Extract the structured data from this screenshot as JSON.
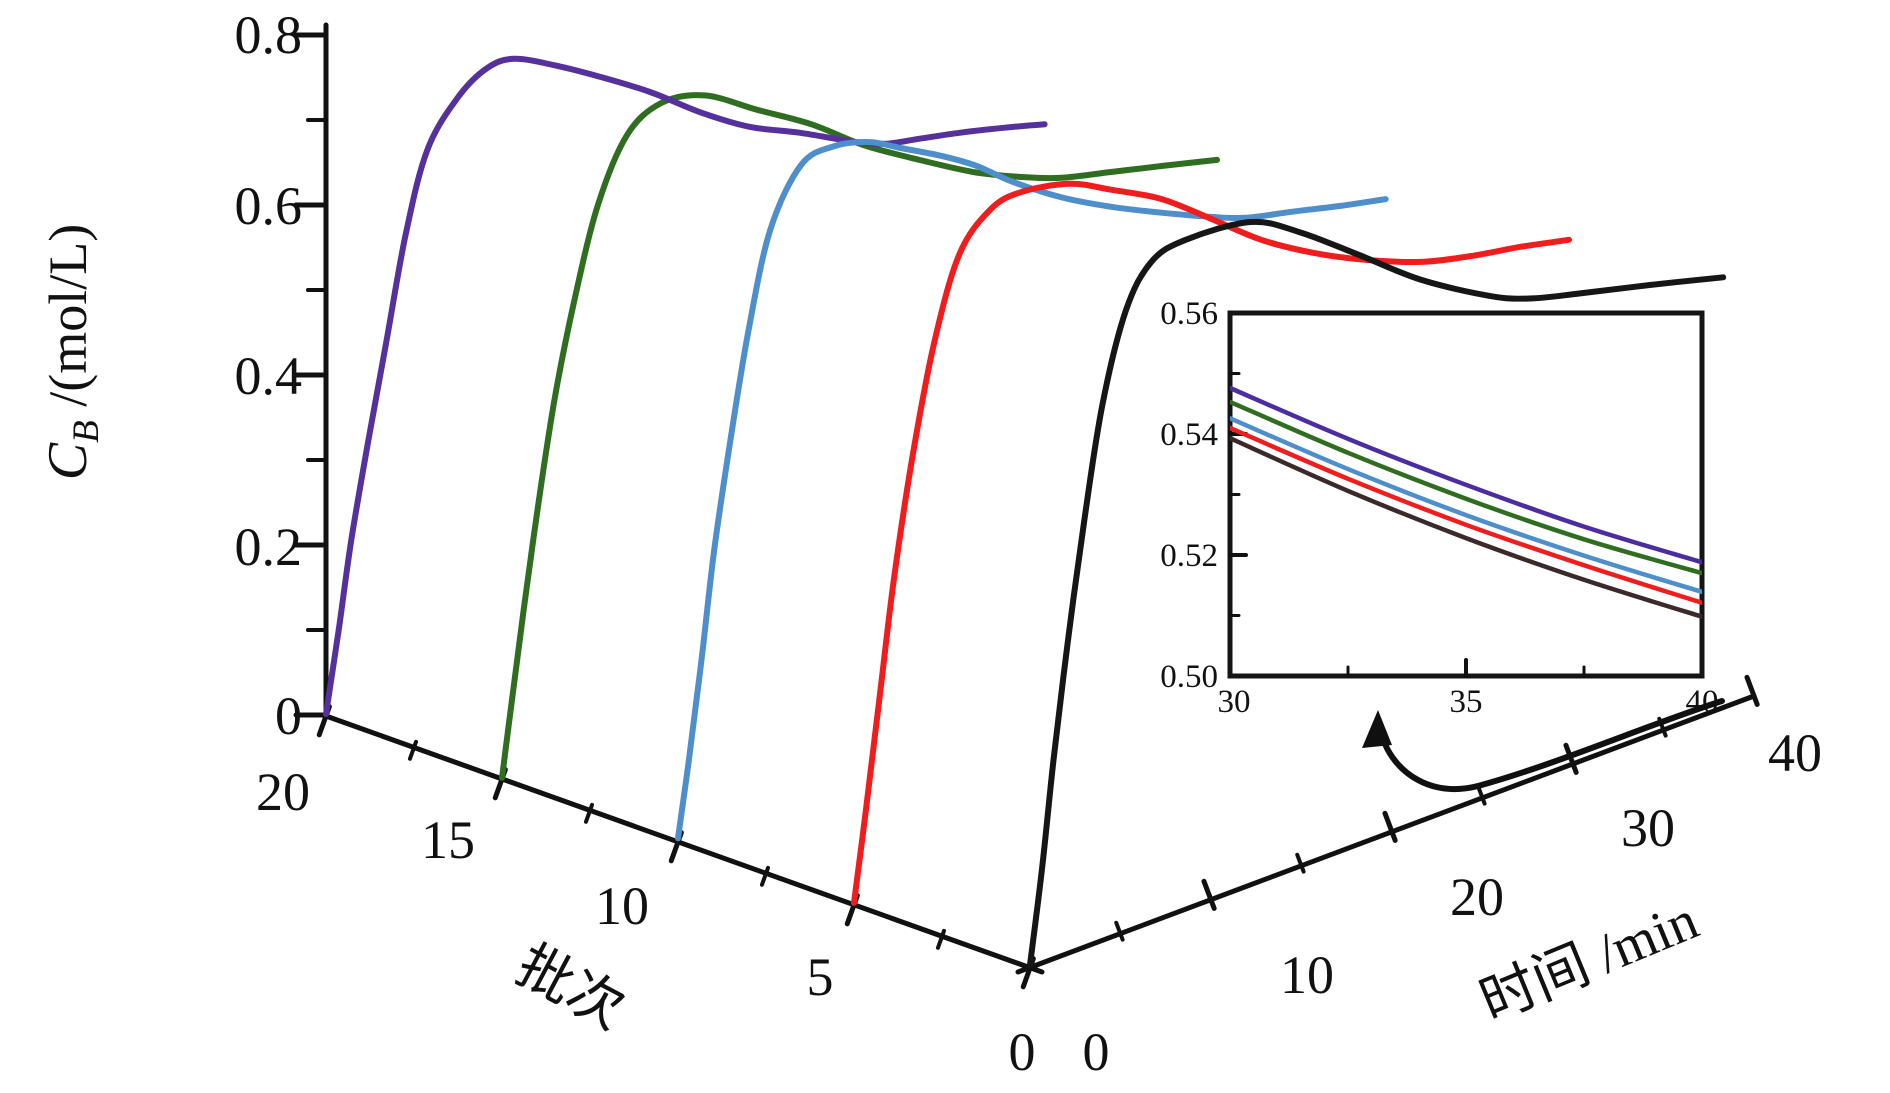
{
  "figure": {
    "background": "#ffffff",
    "description": "3D waterfall line plot of product concentration versus time for successive batches, with zoom inset"
  },
  "chart_data": {
    "type": "line",
    "projection": "3d-waterfall",
    "main": {
      "z_axis": {
        "label": "C_B /(mol/L)",
        "label_rich": {
          "symbol": "C",
          "subscript": "B",
          "rest": " /(mol/L)"
        },
        "min": 0,
        "max": 0.8,
        "major_ticks": [
          0,
          0.2,
          0.4,
          0.6,
          0.8
        ],
        "tick_labels": [
          "0",
          "0.2",
          "0.4",
          "0.6",
          "0.8"
        ],
        "minor_step": 0.1
      },
      "batch_axis": {
        "label": "批次",
        "min": 0,
        "max": 20,
        "major_ticks": [
          20,
          15,
          10,
          5,
          0
        ],
        "tick_labels": [
          "20",
          "15",
          "10",
          "5",
          "0"
        ],
        "minor_step": 2.5
      },
      "time_axis": {
        "label": "时间 /min",
        "min": 0,
        "max": 40,
        "major_ticks": [
          0,
          10,
          20,
          30,
          40
        ],
        "tick_labels": [
          "0",
          "10",
          "20",
          "30",
          "40"
        ],
        "minor_step": 5
      },
      "series": [
        {
          "name": "batch-20",
          "batch": 20,
          "color": "#56319b",
          "points": [
            [
              0,
              0.001
            ],
            [
              0.7,
              0.1
            ],
            [
              1.4,
              0.206
            ],
            [
              2.3,
              0.318
            ],
            [
              3.3,
              0.435
            ],
            [
              4.4,
              0.565
            ],
            [
              5.6,
              0.665
            ],
            [
              7.3,
              0.727
            ],
            [
              8.9,
              0.761
            ],
            [
              10.4,
              0.772
            ],
            [
              12.7,
              0.764
            ],
            [
              15.1,
              0.751
            ],
            [
              17.9,
              0.733
            ],
            [
              20.7,
              0.709
            ],
            [
              23.4,
              0.692
            ],
            [
              26.2,
              0.685
            ],
            [
              29.0,
              0.675
            ],
            [
              30.9,
              0.672
            ],
            [
              32.8,
              0.678
            ],
            [
              35.0,
              0.685
            ],
            [
              37.5,
              0.691
            ],
            [
              39.7,
              0.695
            ]
          ]
        },
        {
          "name": "batch-15",
          "batch": 15,
          "color": "#2f6e20",
          "points": [
            [
              0,
              -0.074
            ],
            [
              0.55,
              0.018
            ],
            [
              1.2,
              0.124
            ],
            [
              2.0,
              0.247
            ],
            [
              2.9,
              0.371
            ],
            [
              4.0,
              0.488
            ],
            [
              5.3,
              0.6
            ],
            [
              6.9,
              0.682
            ],
            [
              8.8,
              0.72
            ],
            [
              11.2,
              0.729
            ],
            [
              14.1,
              0.712
            ],
            [
              17.1,
              0.695
            ],
            [
              19.9,
              0.671
            ],
            [
              22.7,
              0.655
            ],
            [
              26.0,
              0.639
            ],
            [
              28.7,
              0.633
            ],
            [
              30.9,
              0.632
            ],
            [
              33.7,
              0.639
            ],
            [
              36.5,
              0.646
            ],
            [
              39.5,
              0.653
            ]
          ]
        },
        {
          "name": "batch-10",
          "batch": 10,
          "color": "#4e8fcb",
          "points": [
            [
              0,
              -0.145
            ],
            [
              0.6,
              -0.053
            ],
            [
              1.3,
              0.065
            ],
            [
              2.0,
              0.194
            ],
            [
              2.9,
              0.324
            ],
            [
              3.9,
              0.453
            ],
            [
              5.1,
              0.571
            ],
            [
              6.8,
              0.647
            ],
            [
              8.6,
              0.669
            ],
            [
              10.6,
              0.674
            ],
            [
              12.3,
              0.667
            ],
            [
              14.5,
              0.658
            ],
            [
              16.5,
              0.646
            ],
            [
              18.4,
              0.628
            ],
            [
              21.2,
              0.609
            ],
            [
              23.9,
              0.598
            ],
            [
              26.7,
              0.591
            ],
            [
              29.5,
              0.586
            ],
            [
              31.4,
              0.585
            ],
            [
              33.9,
              0.592
            ],
            [
              36.6,
              0.599
            ],
            [
              39.1,
              0.607
            ]
          ]
        },
        {
          "name": "batch-5",
          "batch": 5,
          "color": "#ef1d1d",
          "points": [
            [
              0,
              -0.221
            ],
            [
              0.66,
              -0.112
            ],
            [
              1.4,
              0.018
            ],
            [
              2.2,
              0.159
            ],
            [
              3.2,
              0.3
            ],
            [
              4.4,
              0.435
            ],
            [
              5.8,
              0.541
            ],
            [
              7.5,
              0.594
            ],
            [
              9.2,
              0.615
            ],
            [
              11.9,
              0.625
            ],
            [
              14.2,
              0.618
            ],
            [
              17.0,
              0.607
            ],
            [
              19.7,
              0.584
            ],
            [
              22.5,
              0.559
            ],
            [
              25.3,
              0.544
            ],
            [
              28.0,
              0.536
            ],
            [
              31.3,
              0.533
            ],
            [
              34.1,
              0.54
            ],
            [
              36.9,
              0.551
            ],
            [
              39.5,
              0.559
            ]
          ]
        },
        {
          "name": "batch-0",
          "batch": 0,
          "color": "#161616",
          "points": [
            [
              0,
              -0.294
            ],
            [
              0.66,
              -0.182
            ],
            [
              1.3,
              -0.053
            ],
            [
              2.1,
              0.088
            ],
            [
              3.0,
              0.229
            ],
            [
              4.0,
              0.365
            ],
            [
              5.3,
              0.476
            ],
            [
              6.7,
              0.533
            ],
            [
              8.6,
              0.559
            ],
            [
              12.2,
              0.58
            ],
            [
              14.9,
              0.568
            ],
            [
              18.2,
              0.541
            ],
            [
              21.6,
              0.512
            ],
            [
              25.4,
              0.493
            ],
            [
              27.6,
              0.49
            ],
            [
              30.4,
              0.496
            ],
            [
              34.3,
              0.506
            ],
            [
              38.3,
              0.515
            ]
          ]
        }
      ]
    },
    "inset": {
      "x_axis": {
        "min": 30,
        "max": 40,
        "major_ticks": [
          30,
          35,
          40
        ],
        "tick_labels": [
          "30",
          "35",
          "40"
        ],
        "minor_ticks": [
          32.5,
          37.5
        ]
      },
      "y_axis": {
        "min": 0.5,
        "max": 0.56,
        "major_ticks": [
          0.56,
          0.54,
          0.52,
          0.5
        ],
        "tick_labels": [
          "0.56",
          "0.54",
          "0.52",
          "0.50"
        ],
        "minor_ticks": [
          0.55,
          0.53,
          0.51
        ]
      },
      "series": [
        {
          "name": "batch-20",
          "color": "#4b2da0",
          "points": [
            [
              30,
              0.5476
            ],
            [
              32.5,
              0.5392
            ],
            [
              35,
              0.5316
            ],
            [
              37.5,
              0.5247
            ],
            [
              40,
              0.5188
            ]
          ]
        },
        {
          "name": "batch-15",
          "color": "#2f6e20",
          "points": [
            [
              30,
              0.5453
            ],
            [
              32.5,
              0.5369
            ],
            [
              35,
              0.5293
            ],
            [
              37.5,
              0.5226
            ],
            [
              40,
              0.517
            ]
          ]
        },
        {
          "name": "batch-10",
          "color": "#4e8fcb",
          "points": [
            [
              30,
              0.5426
            ],
            [
              32.5,
              0.5342
            ],
            [
              35,
              0.5266
            ],
            [
              37.5,
              0.5199
            ],
            [
              40,
              0.5139
            ]
          ]
        },
        {
          "name": "batch-5",
          "color": "#ef1d1d",
          "points": [
            [
              30,
              0.541
            ],
            [
              32.5,
              0.5326
            ],
            [
              35,
              0.525
            ],
            [
              37.5,
              0.5183
            ],
            [
              40,
              0.5121
            ]
          ]
        },
        {
          "name": "batch-0",
          "color": "#3a2a2a",
          "points": [
            [
              30,
              0.5393
            ],
            [
              32.5,
              0.5306
            ],
            [
              35,
              0.5228
            ],
            [
              37.5,
              0.5159
            ],
            [
              40,
              0.5098
            ]
          ]
        }
      ]
    },
    "annotations": {
      "arrow": "curved arrow from end of time axis pointing up to inset (zoom of 30-40 min region)"
    },
    "layout_hints": {
      "grid": false,
      "legend": false,
      "inset_position": "right-middle"
    }
  }
}
